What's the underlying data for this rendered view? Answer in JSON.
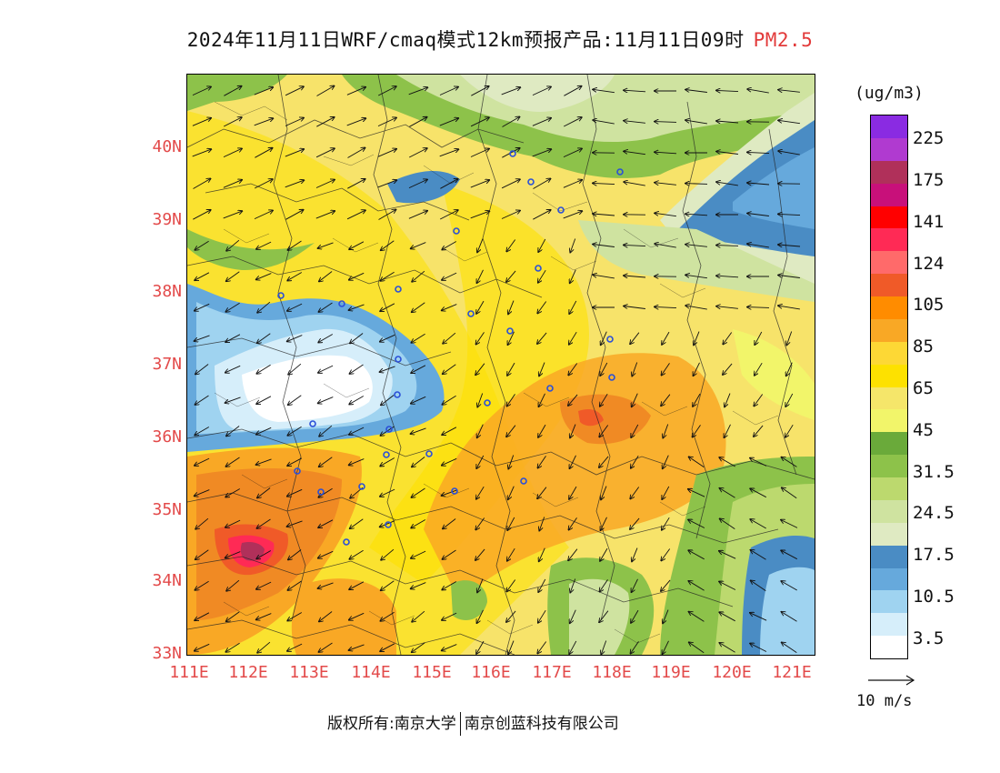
{
  "title": {
    "main": "2024年11月11日WRF/cmaq模式12km预报产品:11月11日09时",
    "pollutant": "PM2.5"
  },
  "map": {
    "lat_labels": [
      "40N",
      "39N",
      "38N",
      "37N",
      "36N",
      "35N",
      "34N",
      "33N"
    ],
    "lon_labels": [
      "111E",
      "112E",
      "113E",
      "114E",
      "115E",
      "116E",
      "117E",
      "118E",
      "119E",
      "120E",
      "121E"
    ]
  },
  "legend": {
    "unit": "(ug/m3)",
    "labels": [
      "225",
      "175",
      "141",
      "124",
      "105",
      "85",
      "65",
      "45",
      "31.5",
      "24.5",
      "17.5",
      "10.5",
      "3.5"
    ],
    "colors": [
      "#8a2be2",
      "#b03ad0",
      "#b0305a",
      "#c8107a",
      "#ff0000",
      "#ff2a55",
      "#ff6a6a",
      "#f05a28",
      "#ff8c00",
      "#f9a825",
      "#fdd835",
      "#fde100",
      "#f5e66a",
      "#f2f56a",
      "#6aaa3a",
      "#8dc24a",
      "#bcd96e",
      "#cfe3a0",
      "#dfeac2",
      "#4a8cc4",
      "#66a9dc",
      "#9fd3f0",
      "#d6eefa",
      "#ffffff"
    ]
  },
  "wind_reference": "10 m/s",
  "footer": {
    "left": "版权所有:南京大学",
    "right": "南京创蓝科技有限公司"
  }
}
